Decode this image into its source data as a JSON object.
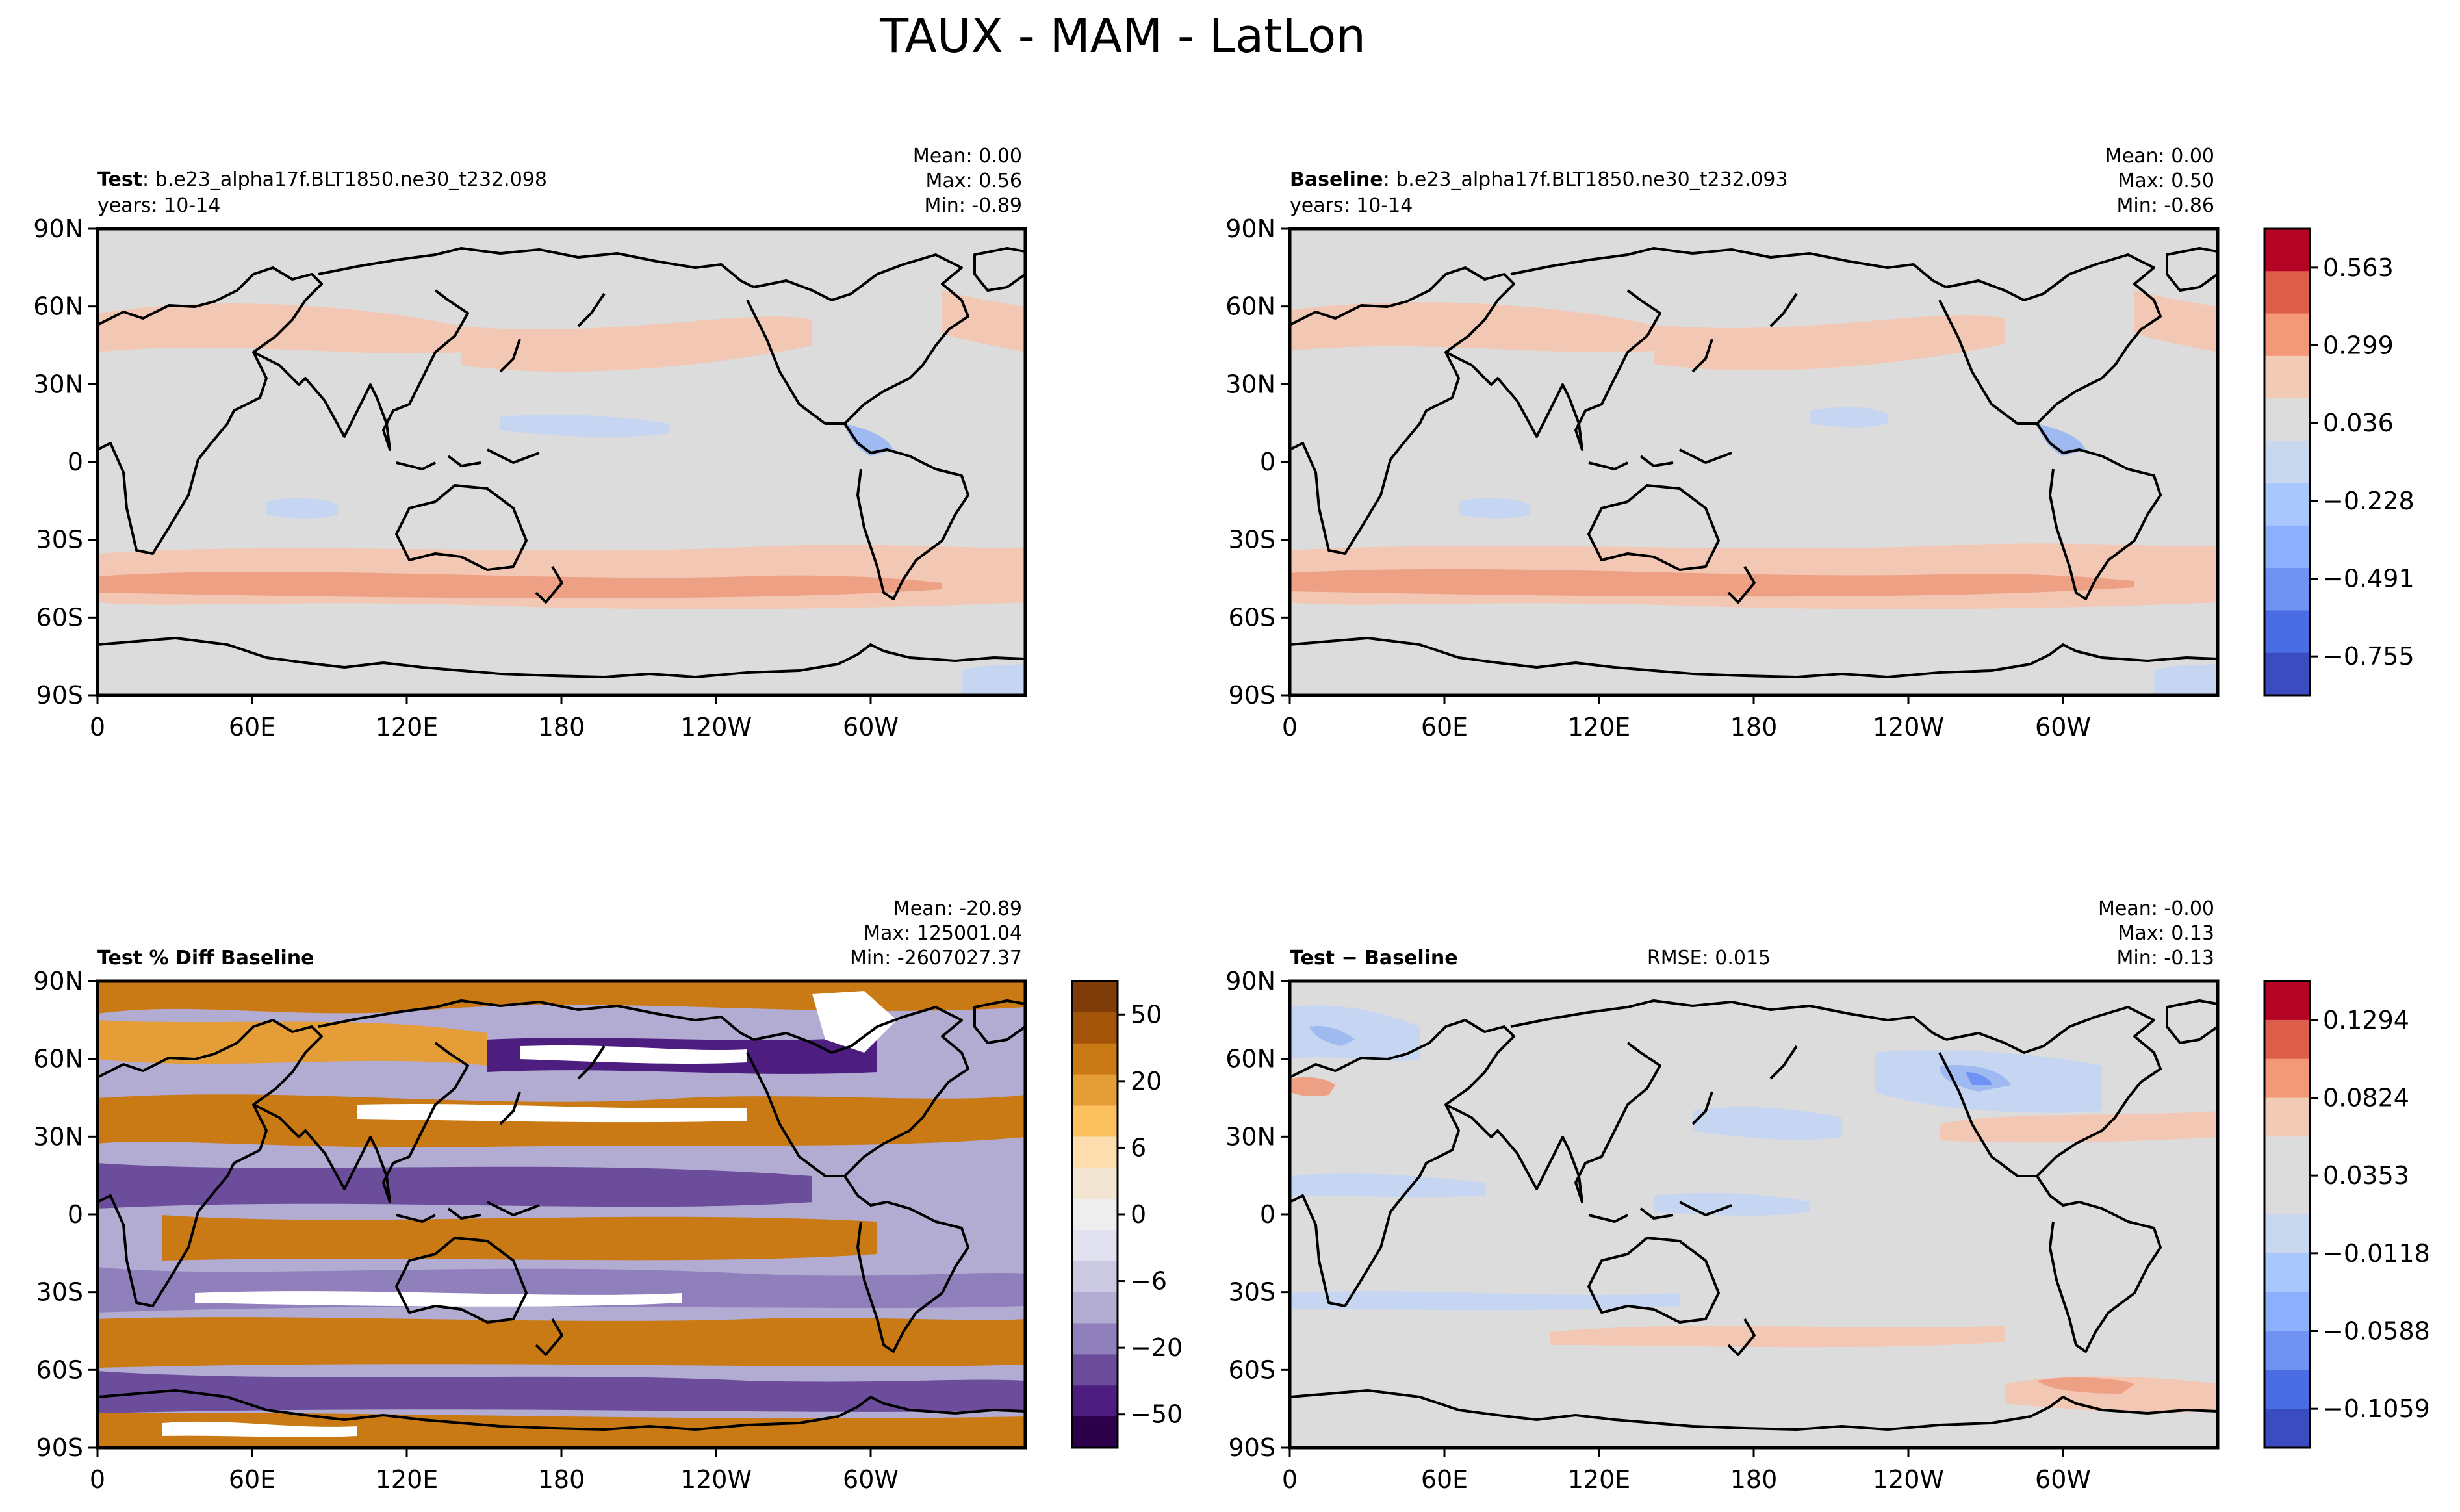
{
  "suptitle": "TAUX - MAM - LatLon",
  "axis_ticks": {
    "lat": [
      "90N",
      "60N",
      "30N",
      "0",
      "30S",
      "60S",
      "90S"
    ],
    "lon": [
      "0",
      "60E",
      "120E",
      "180",
      "120W",
      "60W"
    ]
  },
  "colors": {
    "base_fill": "#dcdcdc",
    "coast": "#000000",
    "blue_light": "#c6d6f2",
    "blue_med": "#9fbaf0",
    "red_light": "#f2c8b4",
    "red_med": "#eea085",
    "brown": "#c97914",
    "purple": "#5a3594"
  },
  "panels": {
    "test": {
      "title_bold": "Test",
      "title_rest": ": b.e23_alpha17f.BLT1850.ne30_t232.098",
      "subtitle": "years: 10-14",
      "stats": [
        "Mean:  0.00",
        "Max:  0.56",
        "Min: -0.89"
      ]
    },
    "baseline": {
      "title_bold": "Baseline",
      "title_rest": ": b.e23_alpha17f.BLT1850.ne30_t232.093",
      "subtitle": "years: 10-14",
      "stats": [
        "Mean:  0.00",
        "Max:  0.50",
        "Min: -0.86"
      ]
    },
    "pctdiff": {
      "title_bold": "Test % Diff Baseline",
      "stats": [
        "Mean: -20.89",
        "Max: 125001.04",
        "Min: -2607027.37"
      ]
    },
    "diff": {
      "title_bold": "Test − Baseline",
      "rmse": "RMSE: 0.015",
      "stats": [
        "Mean: -0.00",
        "Max:  0.13",
        "Min: -0.13"
      ]
    }
  },
  "colorbars": {
    "top": {
      "ticks": [
        "0.563",
        "0.299",
        "0.036",
        "−0.228",
        "−0.491",
        "−0.755"
      ],
      "colors": [
        "#b40426",
        "#dd5f4b",
        "#f4987a",
        "#f2cbb7",
        "#dddcdc",
        "#cad8ef",
        "#aac7fd",
        "#8db0fe",
        "#6f92f3",
        "#4b6de4",
        "#3b4cc0"
      ]
    },
    "pct": {
      "ticks": [
        "50",
        "20",
        "6",
        "0",
        "−6",
        "−20",
        "−50"
      ],
      "colors": [
        "#7f3b08",
        "#a35409",
        "#c97a14",
        "#e59d38",
        "#fcc05f",
        "#fddcad",
        "#f2e6d3",
        "#eeeeee",
        "#e1e1ef",
        "#cbc8e2",
        "#b2abd2",
        "#8f7fbb",
        "#6b4d9c",
        "#4e1d80",
        "#2d004b"
      ]
    },
    "diff": {
      "ticks": [
        "0.1294",
        "0.0824",
        "0.0353",
        "−0.0118",
        "−0.0588",
        "−0.1059"
      ],
      "colors": [
        "#b40426",
        "#dd5f4b",
        "#f4987a",
        "#f2cbb7",
        "#dddcdc",
        "#dddcdc",
        "#cad8ef",
        "#aac7fd",
        "#8db0fe",
        "#6f92f3",
        "#4b6de4",
        "#3b4cc0"
      ]
    }
  },
  "chart_data": [
    {
      "type": "heatmap",
      "title": "Test: b.e23_alpha17f.BLT1850.ne30_t232.098",
      "variable": "TAUX",
      "season": "MAM",
      "years": "10-14",
      "stats": {
        "mean": 0.0,
        "max": 0.56,
        "min": -0.89
      },
      "colorbar_ticks": [
        0.563,
        0.299,
        0.036,
        -0.228,
        -0.491,
        -0.755
      ]
    },
    {
      "type": "heatmap",
      "title": "Baseline: b.e23_alpha17f.BLT1850.ne30_t232.093",
      "variable": "TAUX",
      "season": "MAM",
      "years": "10-14",
      "stats": {
        "mean": 0.0,
        "max": 0.5,
        "min": -0.86
      },
      "colorbar_ticks": [
        0.563,
        0.299,
        0.036,
        -0.228,
        -0.491,
        -0.755
      ]
    },
    {
      "type": "heatmap",
      "title": "Test % Diff Baseline",
      "stats": {
        "mean": -20.89,
        "max": 125001.04,
        "min": -2607027.37
      },
      "colorbar_ticks": [
        50,
        20,
        6,
        0,
        -6,
        -20,
        -50
      ]
    },
    {
      "type": "heatmap",
      "title": "Test − Baseline",
      "rmse": 0.015,
      "stats": {
        "mean": -0.0,
        "max": 0.13,
        "min": -0.13
      },
      "colorbar_ticks": [
        0.1294,
        0.0824,
        0.0353,
        -0.0118,
        -0.0588,
        -0.1059
      ]
    }
  ]
}
